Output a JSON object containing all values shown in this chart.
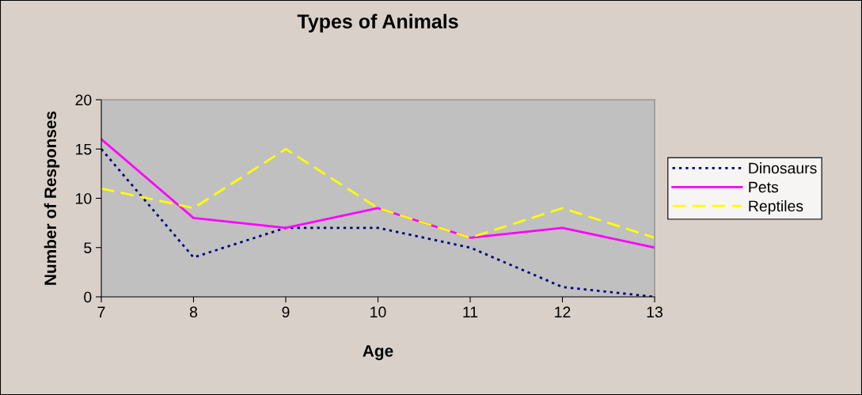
{
  "chart_data": {
    "type": "line",
    "title": "Types of Animals",
    "xlabel": "Age",
    "ylabel": "Number of Responses",
    "x": [
      7,
      8,
      9,
      10,
      11,
      12,
      13
    ],
    "series": [
      {
        "name": "Dinosaurs",
        "color": "#000080",
        "line_style": "dotted",
        "values": [
          15,
          4,
          7,
          7,
          5,
          1,
          0
        ]
      },
      {
        "name": "Pets",
        "color": "#ff00ff",
        "line_style": "solid",
        "values": [
          16,
          8,
          7,
          9,
          6,
          7,
          5
        ]
      },
      {
        "name": "Reptiles",
        "color": "#ffff00",
        "line_style": "dashed",
        "values": [
          11,
          9,
          15,
          9,
          6,
          9,
          6
        ]
      }
    ],
    "xlim": [
      7,
      13
    ],
    "xticks": [
      7,
      8,
      9,
      10,
      11,
      12,
      13
    ],
    "ylim": [
      0,
      20
    ],
    "yticks": [
      0,
      5,
      10,
      15,
      20
    ],
    "grid": false,
    "legend": "right",
    "marker": "none"
  }
}
